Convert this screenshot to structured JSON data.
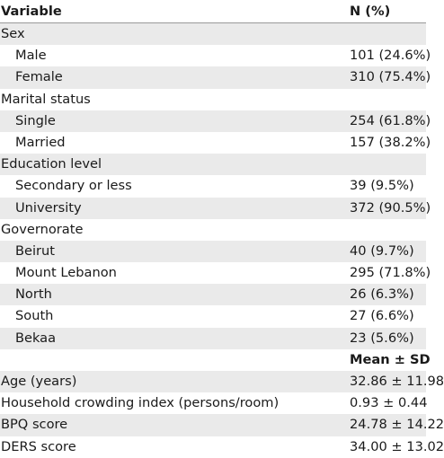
{
  "header": {
    "variable": "Variable",
    "n_pct": "N (%)"
  },
  "rows": [
    {
      "label": "Sex",
      "value": "",
      "indent": false
    },
    {
      "label": "Male",
      "value": "101 (24.6%)",
      "indent": true
    },
    {
      "label": "Female",
      "value": "310 (75.4%)",
      "indent": true
    },
    {
      "label": "Marital status",
      "value": "",
      "indent": false
    },
    {
      "label": "Single",
      "value": "254 (61.8%)",
      "indent": true
    },
    {
      "label": "Married",
      "value": "157 (38.2%)",
      "indent": true
    },
    {
      "label": "Education level",
      "value": "",
      "indent": false
    },
    {
      "label": "Secondary or less",
      "value": "39 (9.5%)",
      "indent": true
    },
    {
      "label": "University",
      "value": "372 (90.5%)",
      "indent": true
    },
    {
      "label": "Governorate",
      "value": "",
      "indent": false
    },
    {
      "label": "Beirut",
      "value": "40 (9.7%)",
      "indent": true
    },
    {
      "label": "Mount Lebanon",
      "value": "295 (71.8%)",
      "indent": true
    },
    {
      "label": "North",
      "value": "26 (6.3%)",
      "indent": true
    },
    {
      "label": "South",
      "value": "27 (6.6%)",
      "indent": true
    },
    {
      "label": "Bekaa",
      "value": "23 (5.6%)",
      "indent": true
    }
  ],
  "subheader": {
    "mean_sd": "Mean ± SD"
  },
  "continuous_rows": [
    {
      "label": "Age (years)",
      "value": "32.86 ± 11.98"
    },
    {
      "label": "Household crowding index (persons/room)",
      "value": "0.93 ± 0.44"
    },
    {
      "label": "BPQ score",
      "value": "24.78 ± 14.22"
    },
    {
      "label": "DERS score",
      "value": "34.00 ± 13.02"
    }
  ]
}
